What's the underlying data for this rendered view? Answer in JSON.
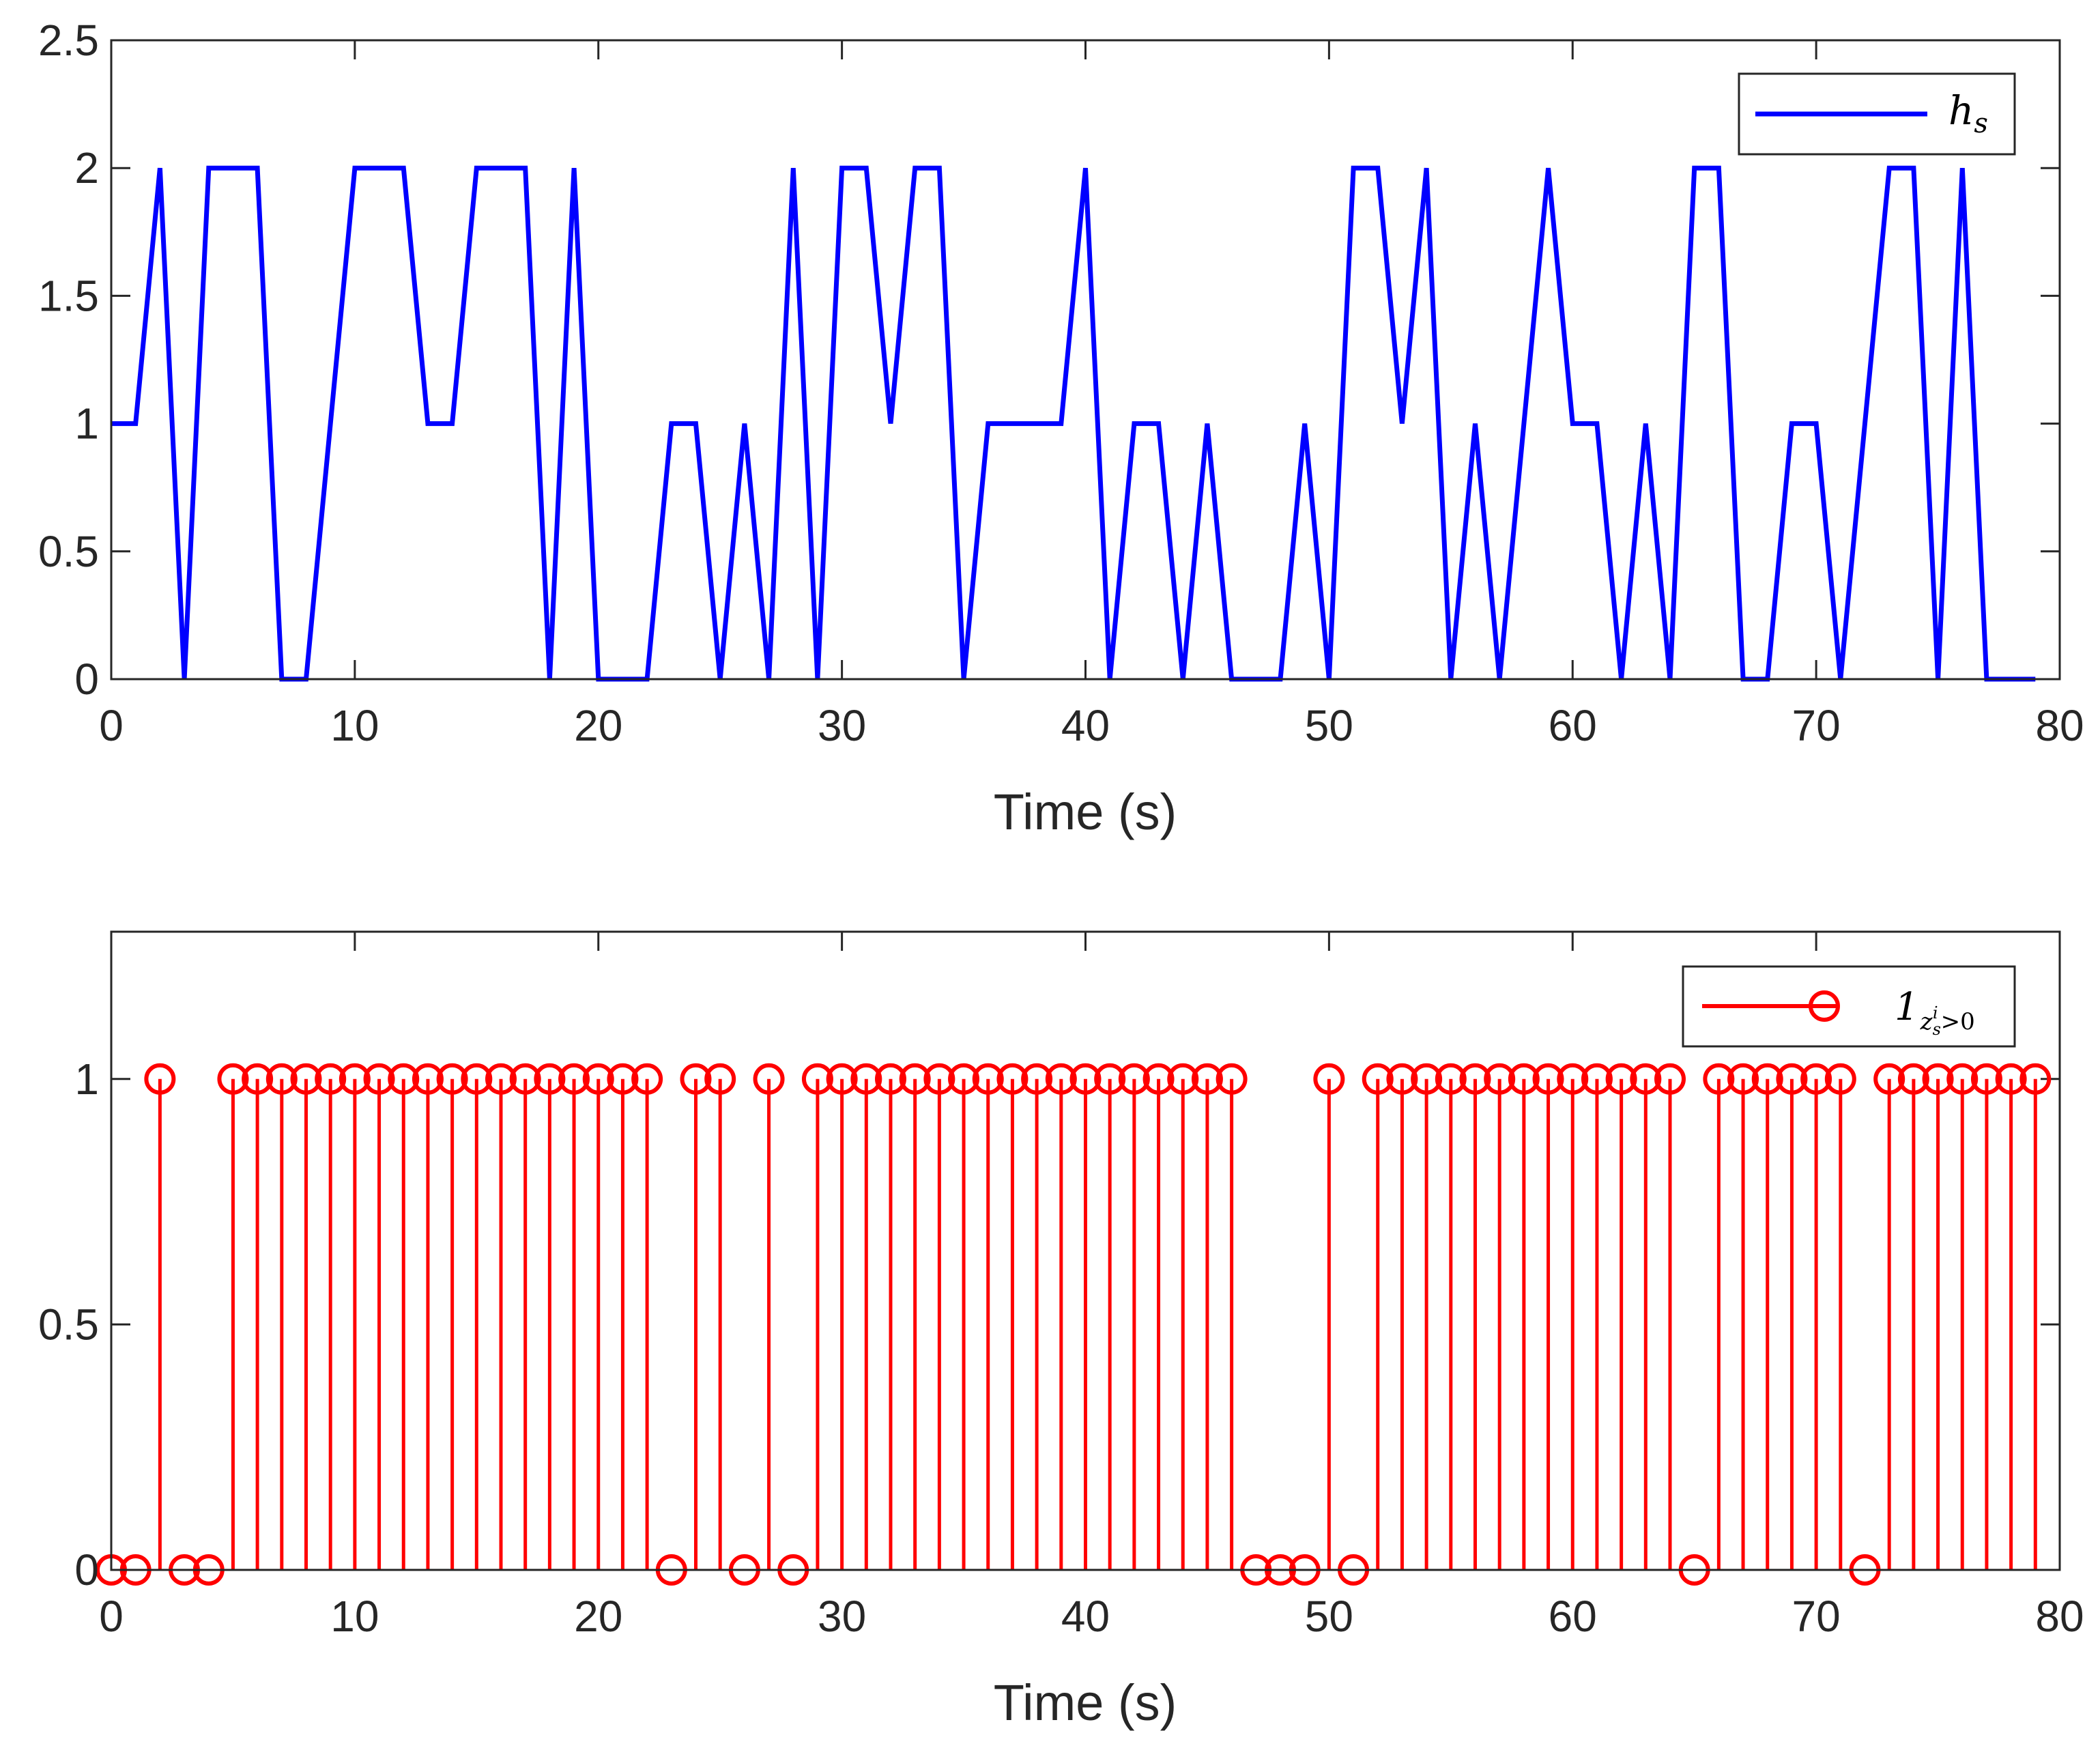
{
  "chart_data": [
    {
      "type": "line",
      "xlabel": "Time (s)",
      "ylabel": "",
      "xlim": [
        0,
        80
      ],
      "ylim": [
        0,
        2.5
      ],
      "xticks": [
        "0",
        "10",
        "20",
        "30",
        "40",
        "50",
        "60",
        "70",
        "80"
      ],
      "yticks": [
        "0",
        "0.5",
        "1",
        "1.5",
        "2",
        "2.5"
      ],
      "legend_position": "top-right",
      "series": [
        {
          "name": "h_s",
          "legend_base": "h",
          "legend_sub": "s",
          "color": "#0000ff",
          "x": [
            0,
            1,
            2,
            3,
            4,
            5,
            6,
            7,
            8,
            9,
            10,
            11,
            12,
            13,
            14,
            15,
            16,
            17,
            18,
            19,
            20,
            21,
            22,
            23,
            24,
            25,
            26,
            27,
            28,
            29,
            30,
            31,
            32,
            33,
            34,
            35,
            36,
            37,
            38,
            39,
            40,
            41,
            42,
            43,
            44,
            45,
            46,
            47,
            48,
            49,
            50,
            51,
            52,
            53,
            54,
            55,
            56,
            57,
            58,
            59,
            60,
            61,
            62,
            63,
            64,
            65,
            66,
            67,
            68,
            69,
            70,
            71,
            72,
            73,
            74,
            75,
            76,
            77,
            78,
            79
          ],
          "y": [
            1,
            1,
            2,
            0,
            2,
            2,
            2,
            0,
            0,
            1,
            2,
            2,
            2,
            1,
            1,
            2,
            2,
            2,
            0,
            2,
            0,
            0,
            0,
            1,
            1,
            0,
            1,
            0,
            2,
            0,
            2,
            2,
            1,
            2,
            2,
            0,
            1,
            1,
            1,
            1,
            2,
            0,
            1,
            1,
            0,
            1,
            0,
            0,
            0,
            1,
            0,
            2,
            2,
            1,
            2,
            0,
            1,
            0,
            1,
            2,
            1,
            1,
            0,
            1,
            0,
            2,
            2,
            0,
            0,
            1,
            1,
            0,
            1,
            2,
            2,
            0,
            2,
            0,
            0,
            0
          ]
        }
      ]
    },
    {
      "type": "stem",
      "xlabel": "Time (s)",
      "ylabel": "",
      "xlim": [
        0,
        80
      ],
      "ylim": [
        0,
        1.3
      ],
      "xticks": [
        "0",
        "10",
        "20",
        "30",
        "40",
        "50",
        "60",
        "70",
        "80"
      ],
      "yticks": [
        "0",
        "0.5",
        "1"
      ],
      "legend_position": "top-right",
      "series": [
        {
          "name": "1_{z_s^i > 0}",
          "legend_base": "1",
          "legend_sub_base": "z",
          "legend_sub_sub": "s",
          "legend_sub_sup": "i",
          "legend_sub_rest": ">0",
          "color": "#ff0000",
          "x": [
            0,
            1,
            2,
            3,
            4,
            5,
            6,
            7,
            8,
            9,
            10,
            11,
            12,
            13,
            14,
            15,
            16,
            17,
            18,
            19,
            20,
            21,
            22,
            23,
            24,
            25,
            26,
            27,
            28,
            29,
            30,
            31,
            32,
            33,
            34,
            35,
            36,
            37,
            38,
            39,
            40,
            41,
            42,
            43,
            44,
            45,
            46,
            47,
            48,
            49,
            50,
            51,
            52,
            53,
            54,
            55,
            56,
            57,
            58,
            59,
            60,
            61,
            62,
            63,
            64,
            65,
            66,
            67,
            68,
            69,
            70,
            71,
            72,
            73,
            74,
            75,
            76,
            77,
            78,
            79
          ],
          "y": [
            0,
            0,
            1,
            0,
            0,
            1,
            1,
            1,
            1,
            1,
            1,
            1,
            1,
            1,
            1,
            1,
            1,
            1,
            1,
            1,
            1,
            1,
            1,
            0,
            1,
            1,
            0,
            1,
            0,
            1,
            1,
            1,
            1,
            1,
            1,
            1,
            1,
            1,
            1,
            1,
            1,
            1,
            1,
            1,
            1,
            1,
            1,
            0,
            0,
            0,
            1,
            0,
            1,
            1,
            1,
            1,
            1,
            1,
            1,
            1,
            1,
            1,
            1,
            1,
            1,
            0,
            1,
            1,
            1,
            1,
            1,
            1,
            0,
            1,
            1,
            1,
            1,
            1,
            1,
            1
          ]
        }
      ]
    }
  ]
}
